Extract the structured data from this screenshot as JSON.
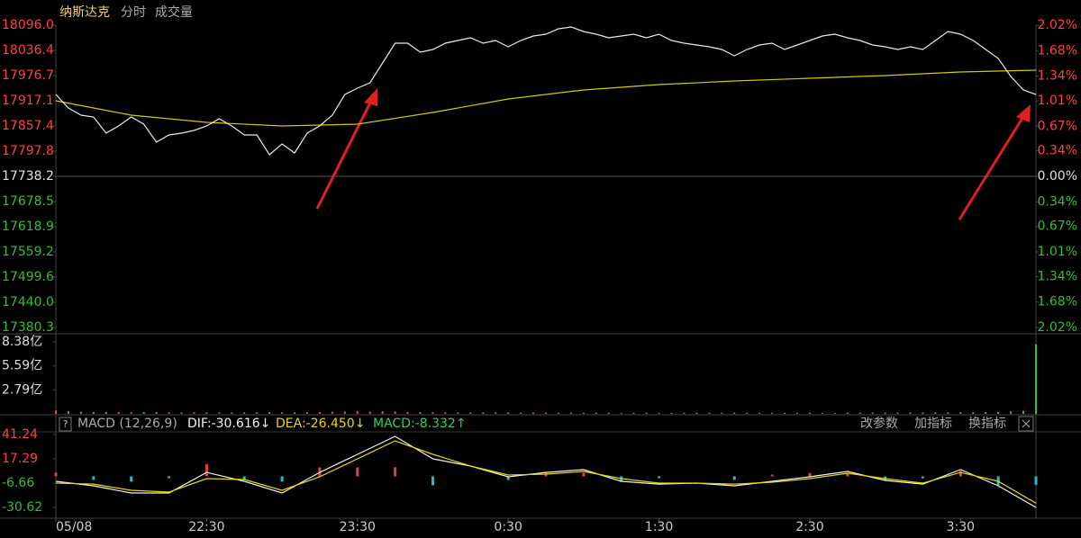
{
  "chart_data": [
    {
      "type": "line",
      "title": "纳斯达克",
      "tabs": [
        "分时",
        "成交量"
      ],
      "x": [
        0,
        5,
        10,
        15,
        20,
        25,
        30,
        35,
        40,
        45,
        50,
        55,
        60,
        65,
        70,
        75,
        80,
        85,
        90,
        95,
        100,
        105,
        110,
        115,
        120,
        125,
        130,
        135,
        140,
        145,
        150,
        155,
        160,
        165,
        170,
        175,
        180,
        185,
        190,
        195,
        200,
        205,
        210,
        215,
        220,
        225,
        230,
        235,
        240,
        245,
        250,
        255,
        260,
        265,
        270,
        275,
        280,
        285,
        290,
        295,
        300,
        305,
        310,
        315,
        320,
        325,
        330,
        335,
        340,
        345,
        350,
        355,
        360,
        365,
        370,
        375,
        380,
        385,
        390
      ],
      "xlim": [
        0,
        390
      ],
      "ylim": [
        17380.3,
        18096.0
      ],
      "yticks": [
        {
          "value": 18096.0,
          "label": "18096.0"
        },
        {
          "value": 18036.4,
          "label": "18036.4"
        },
        {
          "value": 17976.7,
          "label": "17976.7"
        },
        {
          "value": 17917.1,
          "label": "17917.1"
        },
        {
          "value": 17857.4,
          "label": "17857.4"
        },
        {
          "value": 17797.8,
          "label": "17797.8"
        },
        {
          "value": 17738.2,
          "label": "17738.2"
        },
        {
          "value": 17678.5,
          "label": "17678.5"
        },
        {
          "value": 17618.9,
          "label": "17618.9"
        },
        {
          "value": 17559.2,
          "label": "17559.2"
        },
        {
          "value": 17499.6,
          "label": "17499.6"
        },
        {
          "value": 17440.0,
          "label": "17440.0"
        },
        {
          "value": 17380.3,
          "label": "17380.3"
        }
      ],
      "y2lim": [
        -2.02,
        2.02
      ],
      "y2ticks": [
        {
          "value": 2.02,
          "label": "2.02%"
        },
        {
          "value": 1.68,
          "label": "1.68%"
        },
        {
          "value": 1.34,
          "label": "1.34%"
        },
        {
          "value": 1.01,
          "label": "1.01%"
        },
        {
          "value": 0.67,
          "label": "0.67%"
        },
        {
          "value": 0.34,
          "label": "0.34%"
        },
        {
          "value": 0,
          "label": "0.00%"
        },
        {
          "value": -0.34,
          "label": "0.34%"
        },
        {
          "value": -0.67,
          "label": "0.67%"
        },
        {
          "value": -1.01,
          "label": "1.01%"
        },
        {
          "value": -1.34,
          "label": "1.34%"
        },
        {
          "value": -1.68,
          "label": "1.68%"
        },
        {
          "value": -2.02,
          "label": "2.02%"
        }
      ],
      "up_color": "#ff4040",
      "down_color": "#30c030",
      "flat_color": "#e0e0e0",
      "series": [
        {
          "color": "#e8e8e8",
          "values": [
            17932.0,
            17900.0,
            17883.0,
            17878.7,
            17840.4,
            17857.4,
            17878.7,
            17861.7,
            17819.1,
            17836.1,
            17840.4,
            17846.8,
            17857.4,
            17874.5,
            17857.4,
            17836.1,
            17836.1,
            17789.3,
            17814.8,
            17793.5,
            17840.4,
            17857.4,
            17883.0,
            17932.0,
            17946.9,
            17959.7,
            18006.5,
            18053.4,
            18053.4,
            18032.1,
            18038.5,
            18053.4,
            18059.8,
            18066.2,
            18053.4,
            18059.8,
            18044.9,
            18059.8,
            18070.4,
            18074.7,
            18087.5,
            18091.7,
            18081.1,
            18074.7,
            18066.2,
            18070.4,
            18074.7,
            18066.2,
            18074.7,
            18059.8,
            18053.4,
            18049.1,
            18044.9,
            18038.5,
            18023.6,
            18038.5,
            18049.1,
            18053.4,
            18038.5,
            18049.1,
            18059.8,
            18070.4,
            18074.7,
            18066.2,
            18059.8,
            18049.1,
            18044.9,
            18038.5,
            18044.9,
            18038.5,
            18059.8,
            18081.1,
            18074.7,
            18059.8,
            18038.5,
            18017.2,
            17974.6,
            17942.6,
            17932.0
          ]
        },
        {
          "color": "#d8c800",
          "x": [
            0,
            30,
            60,
            90,
            120,
            150,
            180,
            210,
            240,
            270,
            300,
            330,
            360,
            390
          ],
          "values": [
            17917.1,
            17883.0,
            17866.0,
            17857.4,
            17861.7,
            17889.4,
            17921.3,
            17942.6,
            17955.4,
            17963.9,
            17970.3,
            17976.7,
            17985.2,
            17989.5
          ]
        }
      ]
    },
    {
      "type": "bar",
      "x": [
        0,
        5,
        10,
        15,
        20,
        25,
        30,
        35,
        40,
        45,
        50,
        55,
        60,
        65,
        70,
        75,
        80,
        85,
        90,
        95,
        100,
        105,
        110,
        115,
        120,
        125,
        130,
        135,
        140,
        145,
        150,
        155,
        160,
        165,
        170,
        175,
        180,
        185,
        190,
        195,
        200,
        205,
        210,
        215,
        220,
        225,
        230,
        235,
        240,
        245,
        250,
        255,
        260,
        265,
        270,
        275,
        280,
        285,
        290,
        295,
        300,
        305,
        310,
        315,
        320,
        325,
        330,
        335,
        340,
        345,
        350,
        355,
        360,
        365,
        370,
        375,
        380,
        385,
        390
      ],
      "xlim": [
        0,
        390
      ],
      "values": [
        0.4,
        0.3,
        0.25,
        0.2,
        0.22,
        0.2,
        0.18,
        0.2,
        0.2,
        0.18,
        0.16,
        0.18,
        0.17,
        0.16,
        0.15,
        0.16,
        0.18,
        0.2,
        0.18,
        0.17,
        0.2,
        0.22,
        0.25,
        0.28,
        0.3,
        0.26,
        0.3,
        0.28,
        0.22,
        0.2,
        0.18,
        0.17,
        0.16,
        0.15,
        0.15,
        0.16,
        0.15,
        0.14,
        0.15,
        0.14,
        0.13,
        0.14,
        0.13,
        0.12,
        0.13,
        0.12,
        0.12,
        0.13,
        0.12,
        0.12,
        0.13,
        0.12,
        0.12,
        0.13,
        0.14,
        0.12,
        0.12,
        0.13,
        0.12,
        0.12,
        0.13,
        0.12,
        0.12,
        0.13,
        0.13,
        0.14,
        0.13,
        0.14,
        0.15,
        0.15,
        0.16,
        0.17,
        0.18,
        0.2,
        0.22,
        0.25,
        0.3,
        0.35,
        8.1
      ],
      "ylim": [
        0,
        8.38
      ],
      "yticks": [
        {
          "value": 8.38,
          "label": "8.38亿"
        },
        {
          "value": 5.59,
          "label": "5.59亿"
        },
        {
          "value": 2.79,
          "label": "2.79亿"
        }
      ],
      "up_color": "#ff4040",
      "down_color": "#30c030"
    },
    {
      "type": "macd",
      "help": "?",
      "title": "MACD (12,26,9)",
      "buttons": [
        "改参数",
        "加指标",
        "换指标"
      ],
      "x": [
        0,
        15,
        30,
        45,
        60,
        75,
        90,
        105,
        120,
        135,
        150,
        165,
        180,
        195,
        210,
        225,
        240,
        255,
        270,
        285,
        300,
        315,
        330,
        345,
        360,
        375,
        390
      ],
      "xlim": [
        0,
        390
      ],
      "xticks": [
        {
          "value": 0,
          "label": "05/08"
        },
        {
          "value": 60,
          "label": "22:30"
        },
        {
          "value": 120,
          "label": "23:30"
        },
        {
          "value": 180,
          "label": "0:30"
        },
        {
          "value": 240,
          "label": "1:30"
        },
        {
          "value": 300,
          "label": "2:30"
        },
        {
          "value": 360,
          "label": "3:30"
        }
      ],
      "ylim": [
        -30.62,
        41.24
      ],
      "yticks": [
        41.24,
        17.29,
        -6.66,
        -30.62
      ],
      "up_color": "#e04040",
      "down_color": "#20c0c8",
      "series": [
        {
          "name": "DIF",
          "readout": "DIF:-30.616↓",
          "color": "#f0f0f0",
          "values": [
            -4.9,
            -9.3,
            -16.4,
            -16.4,
            3.9,
            -4.9,
            -16.4,
            3.9,
            21.7,
            39.5,
            17.3,
            10.2,
            -0.5,
            3.9,
            6.6,
            -4.9,
            -7.6,
            -6.7,
            -9.3,
            -4.9,
            -0.5,
            4.9,
            -4.0,
            -7.6,
            6.6,
            -9.3,
            -30.616
          ]
        },
        {
          "name": "DEA",
          "readout": "DEA:-26.450↓",
          "color": "#e8d800",
          "values": [
            -6.7,
            -7.6,
            -13.8,
            -15.5,
            -2.2,
            -3.1,
            -13.8,
            -0.5,
            17.3,
            35.0,
            21.7,
            10.2,
            1.3,
            2.2,
            4.9,
            -2.2,
            -6.7,
            -6.7,
            -7.6,
            -5.8,
            -2.2,
            3.1,
            -2.2,
            -6.7,
            3.9,
            -4.9,
            -26.45
          ]
        },
        {
          "name": "MACD",
          "readout": "MACD:-8.332↑",
          "color": "#30d060",
          "kind": "bar",
          "values": [
            3.6,
            -3.4,
            -5.2,
            -1.8,
            12.2,
            -3.6,
            -5.2,
            8.8,
            8.8,
            9.0,
            -8.8,
            0,
            -3.6,
            3.4,
            3.4,
            -5.4,
            -1.8,
            0,
            -3.4,
            1.8,
            3.4,
            3.6,
            -3.6,
            -1.8,
            5.4,
            -8.8,
            -8.332
          ]
        }
      ]
    }
  ]
}
